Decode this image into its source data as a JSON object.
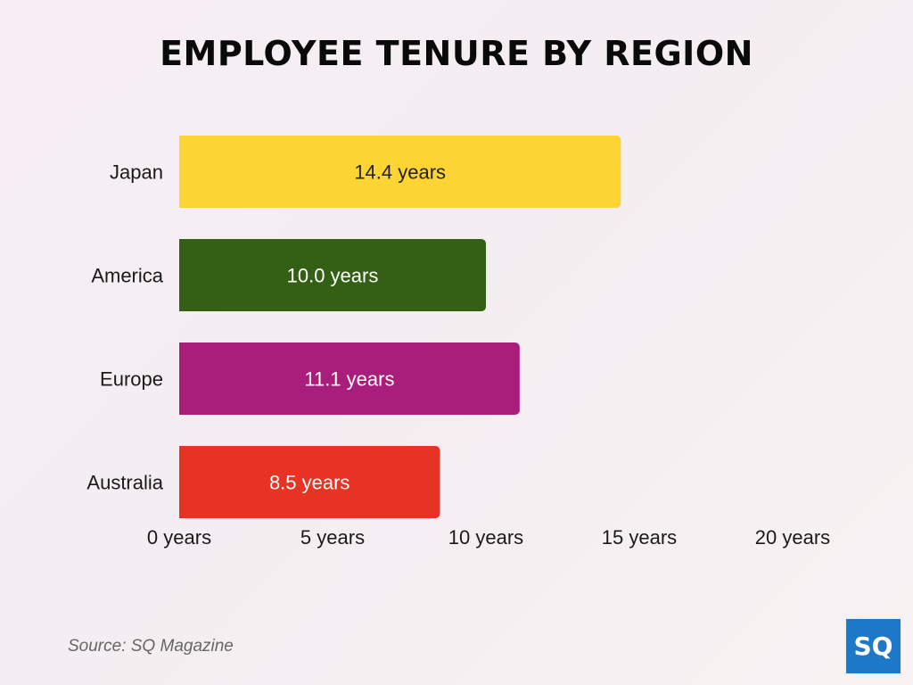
{
  "chart_data": {
    "type": "bar",
    "orientation": "horizontal",
    "title": "EMPLOYEE TENURE BY REGION",
    "categories": [
      "Japan",
      "America",
      "Europe",
      "Australia"
    ],
    "values": [
      14.4,
      10.0,
      11.1,
      8.5
    ],
    "data_labels": [
      "14.4 years",
      "10.0 years",
      "11.1 years",
      "8.5 years"
    ],
    "colors": [
      "#fcd433",
      "#336014",
      "#a91e7b",
      "#e63324"
    ],
    "label_colors": [
      "#222222",
      "#ffffff",
      "#ffffff",
      "#ffffff"
    ],
    "xlim": [
      0,
      20
    ],
    "x_ticks": [
      0,
      5,
      10,
      15,
      20
    ],
    "x_tick_labels": [
      "0 years",
      "5 years",
      "10 years",
      "15 years",
      "20 years"
    ],
    "xlabel": "",
    "ylabel": "",
    "grid": false,
    "legend": "none"
  },
  "footer": {
    "source": "Source: SQ Magazine",
    "logo_text": "SQ"
  }
}
